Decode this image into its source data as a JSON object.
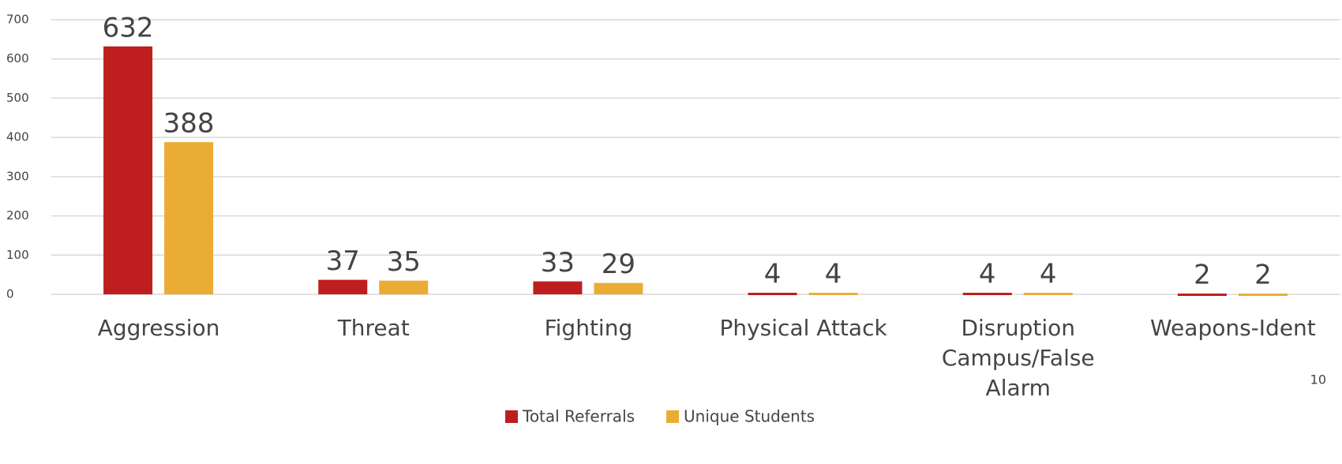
{
  "chart_data": {
    "type": "bar",
    "categories": [
      "Aggression",
      "Threat",
      "Fighting",
      "Physical Attack",
      "Disruption Campus/False Alarm",
      "Weapons-Ident"
    ],
    "series": [
      {
        "name": "Total Referrals",
        "color": "#be1e1e",
        "values": [
          632,
          37,
          33,
          4,
          4,
          2
        ]
      },
      {
        "name": "Unique Students",
        "color": "#ebac36",
        "values": [
          388,
          35,
          29,
          4,
          4,
          2
        ]
      }
    ],
    "ylim": [
      0,
      700
    ],
    "yticks": [
      0,
      100,
      200,
      300,
      400,
      500,
      600,
      700
    ],
    "grid": true,
    "legend": "bottom",
    "page_number": "10"
  }
}
